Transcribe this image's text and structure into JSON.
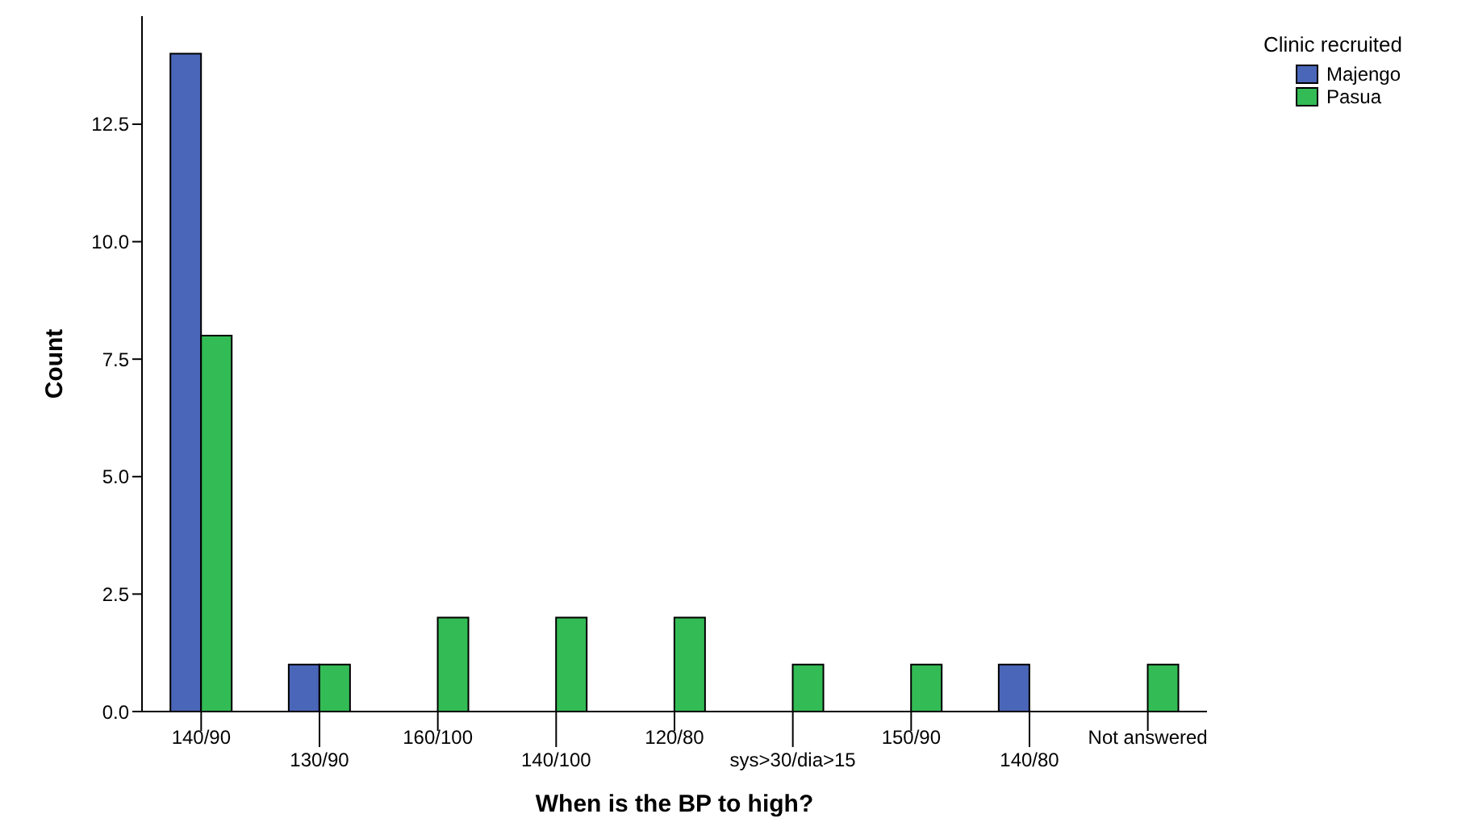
{
  "chart_data": {
    "type": "bar",
    "xlabel": "When is the BP to high?",
    "ylabel": "Count",
    "legend_title": "Clinic recruited",
    "legend": "top right",
    "grid": false,
    "categories": [
      "140/90",
      "130/90",
      "160/100",
      "140/100",
      "120/80",
      "sys>30/dia>15",
      "150/90",
      "140/80",
      "Not answered"
    ],
    "series": [
      {
        "name": "Majengo",
        "color": "#4a66b8",
        "values": [
          14,
          1,
          null,
          null,
          null,
          null,
          null,
          1,
          null
        ]
      },
      {
        "name": "Pasua",
        "color": "#33bb55",
        "values": [
          8,
          1,
          2,
          2,
          2,
          1,
          1,
          null,
          1
        ]
      }
    ],
    "ylim": [
      0,
      14.8
    ],
    "yticks": [
      {
        "value": 0,
        "label": "0.0"
      },
      {
        "value": 2.5,
        "label": "2.5"
      },
      {
        "value": 5,
        "label": "5.0"
      },
      {
        "value": 7.5,
        "label": "7.5"
      },
      {
        "value": 10,
        "label": "10.0"
      },
      {
        "value": 12.5,
        "label": "12.5"
      }
    ]
  }
}
